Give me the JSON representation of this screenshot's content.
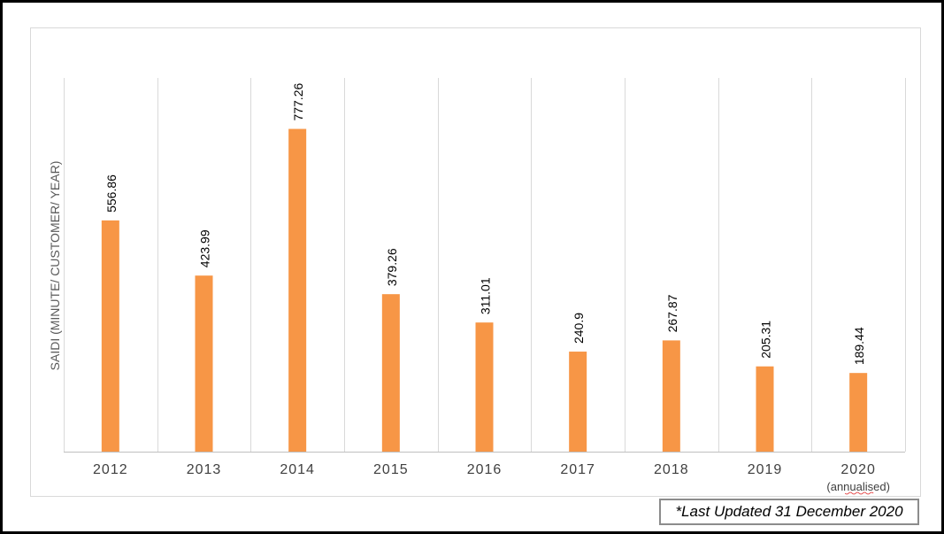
{
  "chart_data": {
    "type": "bar",
    "title": "",
    "xlabel": "",
    "ylabel": "SAIDI (MINUTE/ CUSTOMER/ YEAR)",
    "categories": [
      "2012",
      "2013",
      "2014",
      "2015",
      "2016",
      "2017",
      "2018",
      "2019",
      "2020"
    ],
    "category_notes": [
      "",
      "",
      "",
      "",
      "",
      "",
      "",
      "",
      "(annualised)"
    ],
    "values": [
      556.86,
      423.99,
      777.26,
      379.26,
      311.01,
      240.9,
      267.87,
      205.31,
      189.44
    ],
    "value_labels": [
      "556.86",
      "423.99",
      "777.26",
      "379.26",
      "311.01",
      "240.9",
      "267.87",
      "205.31",
      "189.44"
    ],
    "ylim": [
      0,
      900
    ],
    "grid": "vertical category separators",
    "bar_color": "#f79646",
    "grid_color": "#d9d9d9",
    "axis_color": "#bfbfbf",
    "label_color": "#000000",
    "tick_color": "#404040"
  },
  "note": "*Last Updated 31 December 2020"
}
